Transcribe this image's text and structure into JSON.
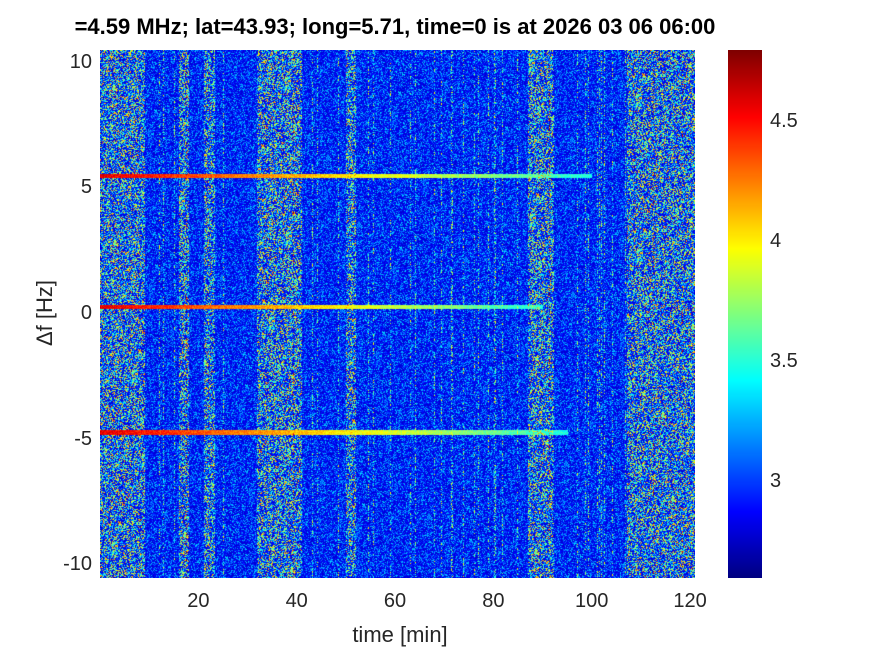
{
  "chart_data": {
    "type": "heatmap",
    "title": "=4.59 MHz;  lat=43.93; long=5.71, time=0 is at 2026 03 06 06:00",
    "xlabel": "time [min]",
    "ylabel": "Δf [Hz]",
    "xlim": [
      0,
      121
    ],
    "ylim": [
      -10.5,
      10.5
    ],
    "xticks": [
      20,
      40,
      60,
      80,
      100,
      120
    ],
    "xtick_labels": [
      "20",
      "40",
      "60",
      "80",
      "100",
      "120"
    ],
    "yticks": [
      10,
      5,
      0,
      -5,
      -10
    ],
    "ytick_labels": [
      "10",
      "5",
      "0",
      "-5",
      "-10"
    ],
    "colormap": "jet",
    "clim": [
      2.6,
      4.8
    ],
    "colorbar_ticks": [
      3,
      3.5,
      4,
      4.5
    ],
    "colorbar_tick_labels": [
      "3",
      "3.5",
      "4",
      "4.5"
    ],
    "carrier_lines": [
      {
        "df": 5.5,
        "t_start": 0,
        "t_end": 100
      },
      {
        "df": 0.3,
        "t_start": 0,
        "t_end": 90
      },
      {
        "df": -4.7,
        "t_start": 0,
        "t_end": 95
      }
    ],
    "noisy_time_bands": [
      [
        0,
        9
      ],
      [
        16,
        18
      ],
      [
        21,
        23
      ],
      [
        32,
        41
      ],
      [
        50,
        52
      ],
      [
        87,
        92
      ],
      [
        107,
        121
      ]
    ]
  }
}
